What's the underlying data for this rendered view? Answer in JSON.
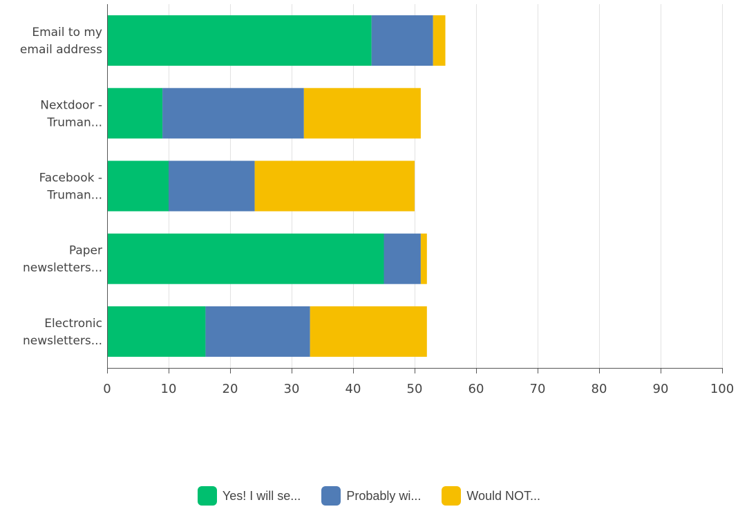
{
  "chart_data": {
    "type": "bar",
    "orientation": "horizontal",
    "stacked": true,
    "categories": [
      [
        "Email to my",
        "email address"
      ],
      [
        "Nextdoor -",
        "Truman..."
      ],
      [
        "Facebook -",
        "Truman..."
      ],
      [
        "Paper",
        "newsletters..."
      ],
      [
        "Electronic",
        "newsletters..."
      ]
    ],
    "series": [
      {
        "name": "Yes! I will se...",
        "color": "#00bf6f",
        "values": [
          43,
          9,
          10,
          45,
          16
        ]
      },
      {
        "name": "Probably wi...",
        "color": "#507cb6",
        "values": [
          10,
          23,
          14,
          6,
          17
        ]
      },
      {
        "name": "Would NOT...",
        "color": "#f6be00",
        "values": [
          2,
          19,
          26,
          1,
          19
        ]
      }
    ],
    "xlim": [
      0,
      100
    ],
    "xticks": [
      0,
      10,
      20,
      30,
      40,
      50,
      60,
      70,
      80,
      90,
      100
    ],
    "grid": true,
    "legend_position": "bottom-center",
    "title": "",
    "xlabel": "",
    "ylabel": ""
  }
}
